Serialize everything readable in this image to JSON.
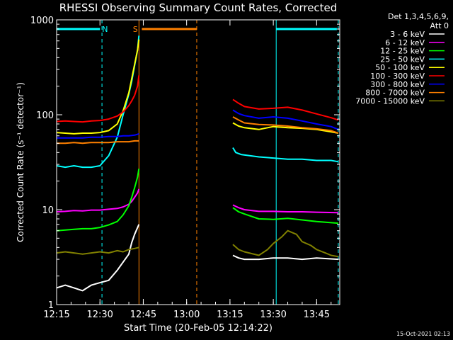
{
  "chart_data": {
    "type": "line",
    "title": "RHESSI Observing Summary Count Rates, Corrected",
    "xlabel": "Start Time (20-Feb-05 12:14:22)",
    "ylabel": "Corrected Count Rate (s⁻¹ detector⁻¹)",
    "ylog": true,
    "xlim": [
      15,
      113
    ],
    "ylim": [
      1,
      1000
    ],
    "x_ticks": [
      {
        "value": 15,
        "label": "12:15"
      },
      {
        "value": 30,
        "label": "12:30"
      },
      {
        "value": 45,
        "label": "12:45"
      },
      {
        "value": 60,
        "label": "13:00"
      },
      {
        "value": 75,
        "label": "13:15"
      },
      {
        "value": 90,
        "label": "13:30"
      },
      {
        "value": 105,
        "label": "13:45"
      }
    ],
    "y_ticks": [
      {
        "value": 1,
        "label": "1"
      },
      {
        "value": 10,
        "label": "10"
      },
      {
        "value": 100,
        "label": "100"
      },
      {
        "value": 1000,
        "label": "1000"
      }
    ],
    "legend_header": [
      "Det 1,3,4,5,6,9,",
      "Att 0"
    ],
    "legend_position": "right",
    "series": [
      {
        "name": "3 - 6 keV",
        "color": "#ffffff",
        "x": [
          15,
          18,
          21,
          24,
          27,
          30,
          33,
          36,
          38,
          40,
          41,
          42,
          43.5,
          76,
          78,
          80,
          85,
          90,
          95,
          100,
          105,
          112.5
        ],
        "y": [
          1.5,
          1.6,
          1.5,
          1.4,
          1.6,
          1.7,
          1.8,
          2.3,
          2.8,
          3.4,
          4.5,
          5.5,
          7.0,
          3.3,
          3.1,
          3.0,
          3.0,
          3.1,
          3.1,
          3.0,
          3.1,
          3.0
        ]
      },
      {
        "name": "6 - 12 keV",
        "color": "#ff00ff",
        "x": [
          15,
          18,
          21,
          24,
          27,
          30,
          33,
          36,
          38,
          40,
          41,
          42,
          43,
          43.5,
          76,
          78,
          80,
          85,
          90,
          95,
          100,
          105,
          112.5
        ],
        "y": [
          9.5,
          9.6,
          9.8,
          9.7,
          9.9,
          9.9,
          10.1,
          10.3,
          10.7,
          11.4,
          12.2,
          13.5,
          15.0,
          16.5,
          11.2,
          10.5,
          10.0,
          9.6,
          9.6,
          9.5,
          9.5,
          9.4,
          9.3
        ]
      },
      {
        "name": "12 - 25 keV",
        "color": "#00ff00",
        "x": [
          15,
          18,
          21,
          24,
          27,
          30,
          33,
          36,
          38,
          40,
          41,
          42,
          43,
          43.5,
          76,
          78,
          80,
          85,
          90,
          95,
          100,
          105,
          112.5
        ],
        "y": [
          6.0,
          6.1,
          6.2,
          6.3,
          6.3,
          6.5,
          6.9,
          7.5,
          8.8,
          11.0,
          13.5,
          17.0,
          22.0,
          27.0,
          10.5,
          9.5,
          9.0,
          8.0,
          7.9,
          8.1,
          7.8,
          7.5,
          7.2
        ]
      },
      {
        "name": "25 - 50 keV",
        "color": "#00ffff",
        "x": [
          15,
          18,
          21,
          24,
          27,
          30,
          33,
          36,
          38,
          40,
          41,
          42,
          43,
          43.5,
          76,
          77,
          79,
          82,
          85,
          90,
          95,
          100,
          105,
          110,
          112.5
        ],
        "y": [
          29,
          28,
          29,
          28,
          28,
          29,
          37,
          58,
          100,
          165,
          225,
          330,
          480,
          680,
          45,
          40,
          38,
          37,
          36,
          35,
          34,
          34,
          33,
          33,
          32
        ]
      },
      {
        "name": "50 - 100 keV",
        "color": "#ffff00",
        "x": [
          15,
          18,
          21,
          24,
          27,
          30,
          33,
          36,
          38,
          40,
          41,
          42,
          43,
          43.5,
          76,
          78,
          80,
          85,
          90,
          95,
          100,
          105,
          110,
          112.5
        ],
        "y": [
          65,
          64,
          63,
          64,
          64,
          65,
          68,
          80,
          110,
          170,
          240,
          340,
          480,
          620,
          82,
          76,
          73,
          70,
          75,
          73,
          72,
          70,
          66,
          64
        ]
      },
      {
        "name": "100 - 300 keV",
        "color": "#ff0000",
        "x": [
          15,
          18,
          21,
          24,
          27,
          30,
          33,
          36,
          38,
          40,
          41,
          42,
          43,
          43.5,
          76,
          78,
          80,
          85,
          90,
          95,
          100,
          105,
          110,
          112.5
        ],
        "y": [
          85,
          86,
          85,
          84,
          86,
          87,
          90,
          97,
          107,
          125,
          140,
          160,
          200,
          260,
          145,
          132,
          122,
          115,
          117,
          120,
          112,
          102,
          93,
          88
        ]
      },
      {
        "name": "300 - 800 keV",
        "color": "#0000ff",
        "x": [
          15,
          18,
          21,
          24,
          27,
          30,
          33,
          36,
          38,
          40,
          42,
          43.5,
          76,
          78,
          80,
          85,
          90,
          95,
          100,
          105,
          110,
          112.5
        ],
        "y": [
          57,
          57,
          57,
          57,
          58,
          58,
          59,
          59,
          60,
          60,
          61,
          63,
          112,
          103,
          98,
          92,
          95,
          92,
          86,
          80,
          75,
          70
        ]
      },
      {
        "name": "800 - 7000 keV",
        "color": "#ff8000",
        "x": [
          15,
          18,
          21,
          24,
          27,
          30,
          33,
          36,
          38,
          40,
          42,
          43.5,
          76,
          78,
          80,
          85,
          90,
          95,
          100,
          105,
          110,
          112.5
        ],
        "y": [
          50,
          50,
          51,
          50,
          51,
          51,
          51,
          52,
          52,
          52,
          53,
          53,
          95,
          88,
          82,
          79,
          78,
          76,
          73,
          71,
          68,
          64
        ]
      },
      {
        "name": "7000 - 15000 keV",
        "color": "#808000",
        "x": [
          15,
          18,
          21,
          24,
          27,
          30,
          33,
          36,
          38,
          40,
          42,
          43.5,
          76,
          78,
          80,
          85,
          88,
          90,
          93,
          95,
          98,
          100,
          103,
          105,
          108,
          110,
          112.5
        ],
        "y": [
          3.5,
          3.6,
          3.5,
          3.4,
          3.5,
          3.6,
          3.5,
          3.7,
          3.6,
          3.8,
          3.9,
          4.0,
          4.3,
          3.8,
          3.6,
          3.3,
          3.8,
          4.4,
          5.2,
          6.0,
          5.5,
          4.6,
          4.2,
          3.8,
          3.5,
          3.3,
          3.2
        ]
      }
    ],
    "attenuator_bars": [
      {
        "label": "",
        "from": 15,
        "to": 30,
        "color": "#00ffff"
      },
      {
        "label": "N",
        "from": 31,
        "to": 32.5,
        "color": "#00ffff"
      },
      {
        "label": "S",
        "from": 42,
        "to": 42.5,
        "color": "#ff8000"
      },
      {
        "label": "",
        "from": 44.5,
        "to": 63.5,
        "color": "#ff8000"
      },
      {
        "label": "",
        "from": 91,
        "to": 112,
        "color": "#00ffff"
      }
    ],
    "boundary_lines": [
      {
        "x": 15,
        "color": "#00ffff",
        "style": "solid"
      },
      {
        "x": 30.7,
        "color": "#00ffff",
        "style": "dashed"
      },
      {
        "x": 43.5,
        "color": "#ff8000",
        "style": "solid"
      },
      {
        "x": 63.5,
        "color": "#ff8000",
        "style": "dashed"
      },
      {
        "x": 91,
        "color": "#00ffff",
        "style": "solid"
      },
      {
        "x": 112.5,
        "color": "#00ffff",
        "style": "dashed"
      }
    ],
    "footer": "15-Oct-2021 02:13"
  }
}
